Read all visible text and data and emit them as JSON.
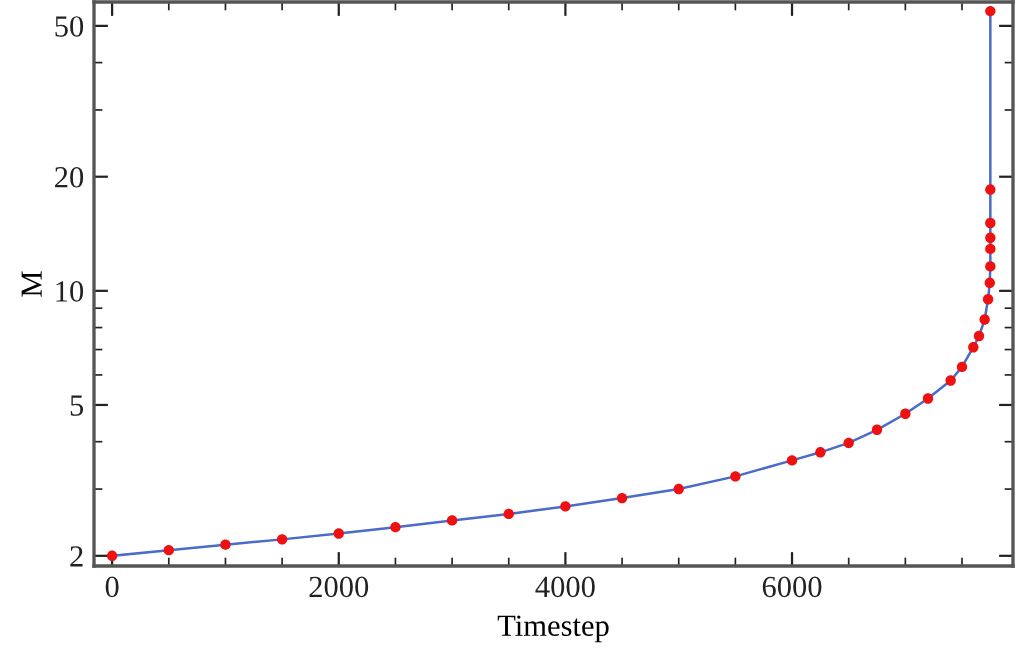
{
  "chart_data": {
    "type": "line",
    "xlabel": "Timestep",
    "ylabel": "M",
    "log": "y",
    "grid": false,
    "x": [
      0,
      500,
      1000,
      1500,
      2000,
      2500,
      3000,
      3500,
      4000,
      4500,
      5000,
      5500,
      6000,
      6250,
      6500,
      6750,
      7000,
      7200,
      7400,
      7500,
      7600,
      7650,
      7700,
      7730,
      7745,
      7750,
      7750,
      7750,
      7750,
      7750,
      7750
    ],
    "series": [
      {
        "color": "#4a6bc8",
        "marker": "none",
        "values": [
          2.0,
          2.07,
          2.14,
          2.21,
          2.29,
          2.38,
          2.48,
          2.58,
          2.7,
          2.84,
          3.0,
          3.24,
          3.57,
          3.75,
          3.97,
          4.3,
          4.74,
          5.2,
          5.8,
          6.3,
          7.1,
          7.6,
          8.4,
          9.5,
          10.5,
          11.6,
          12.9,
          13.8,
          15.1,
          18.5,
          54.7
        ]
      },
      {
        "type": "scatter",
        "color": "#ee1111",
        "marker": "circle",
        "values": [
          2.0,
          2.07,
          2.14,
          2.21,
          2.29,
          2.38,
          2.48,
          2.58,
          2.7,
          2.84,
          3.0,
          3.24,
          3.57,
          3.75,
          3.97,
          4.3,
          4.74,
          5.2,
          5.8,
          6.3,
          7.1,
          7.6,
          8.4,
          9.5,
          10.5,
          11.6,
          12.9,
          13.8,
          15.1,
          18.5,
          54.7
        ]
      }
    ],
    "xlim": [
      -160,
      7950
    ],
    "xticks": [
      0,
      2000,
      4000,
      6000
    ],
    "ylim": [
      1.88,
      57.8
    ],
    "yticks": [
      2,
      5,
      10,
      20,
      50
    ]
  }
}
